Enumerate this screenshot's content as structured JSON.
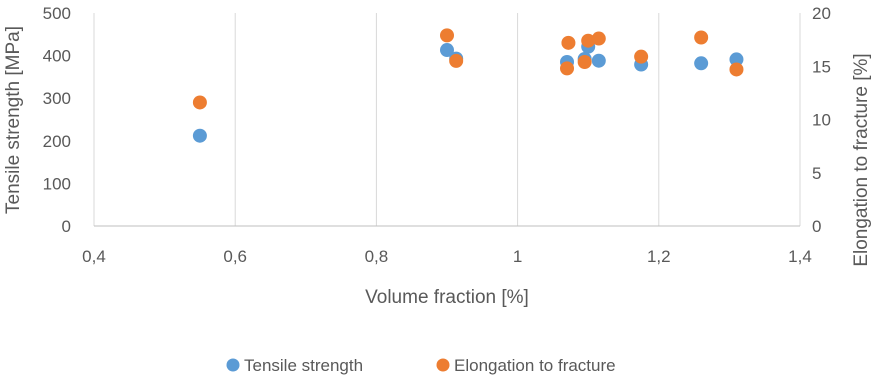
{
  "chart_data": {
    "type": "scatter",
    "title": "",
    "xlabel": "Volume fraction [%]",
    "ylabel": "Tensile strength [MPa]",
    "y2label": "Elongation to fracture [%]",
    "xlim": [
      0.4,
      1.4
    ],
    "ylim": [
      0,
      500
    ],
    "y2lim": [
      0,
      20
    ],
    "xticks": [
      "0,4",
      "0,6",
      "0,8",
      "1",
      "1,2",
      "1,4"
    ],
    "yticks": [
      "0",
      "100",
      "200",
      "300",
      "400",
      "500"
    ],
    "y2ticks": [
      "0",
      "5",
      "10",
      "15",
      "20"
    ],
    "grid": "vertical",
    "legend_position": "bottom",
    "series": [
      {
        "name": "Tensile strength",
        "axis": "left",
        "color": "#5b9bd5",
        "points": [
          {
            "x": 0.55,
            "y": 212
          },
          {
            "x": 0.9,
            "y": 413
          },
          {
            "x": 0.913,
            "y": 393
          },
          {
            "x": 1.07,
            "y": 385
          },
          {
            "x": 1.095,
            "y": 392
          },
          {
            "x": 1.1,
            "y": 421
          },
          {
            "x": 1.115,
            "y": 388
          },
          {
            "x": 1.175,
            "y": 379
          },
          {
            "x": 1.26,
            "y": 382
          },
          {
            "x": 1.31,
            "y": 391
          }
        ]
      },
      {
        "name": "Elongation to fracture",
        "axis": "right",
        "color": "#ed7d31",
        "points": [
          {
            "x": 0.55,
            "y": 11.6
          },
          {
            "x": 0.9,
            "y": 17.9
          },
          {
            "x": 0.913,
            "y": 15.5
          },
          {
            "x": 1.07,
            "y": 14.8
          },
          {
            "x": 1.072,
            "y": 17.2
          },
          {
            "x": 1.095,
            "y": 15.4
          },
          {
            "x": 1.1,
            "y": 17.4
          },
          {
            "x": 1.115,
            "y": 17.6
          },
          {
            "x": 1.175,
            "y": 15.9
          },
          {
            "x": 1.26,
            "y": 17.7
          },
          {
            "x": 1.31,
            "y": 14.7
          }
        ]
      }
    ]
  }
}
